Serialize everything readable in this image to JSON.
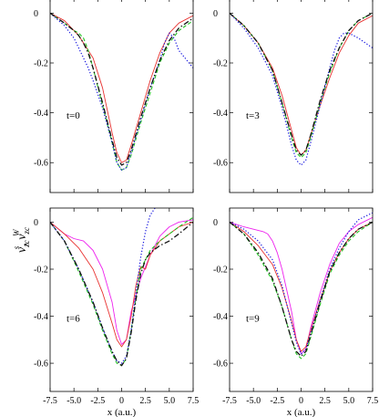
{
  "chart_data": {
    "type": "line",
    "shared_ylabel": {
      "base1": "v",
      "sup1": "s",
      "sub1": "zc",
      "sep": ", ",
      "base2": "v",
      "sup2": "W",
      "sub2": "zc"
    },
    "xlabel": "x (a.u.)",
    "xlim": [
      -7.5,
      7.5
    ],
    "ylim": [
      -0.72,
      0.06
    ],
    "xticks": [
      "-7.5",
      "-5.0",
      "-2.5",
      "0",
      "2.5",
      "5.0",
      "7.5"
    ],
    "yticks": [
      "0",
      "-0.2",
      "-0.4",
      "-0.6"
    ],
    "panels": [
      {
        "label": "t=0",
        "series": [
          {
            "color": "#e8312f",
            "style": "solid",
            "width": 0.9,
            "x": [
              -7.5,
              -6,
              -4.5,
              -3,
              -2,
              -1,
              -0.5,
              0,
              0.5,
              1,
              2,
              3,
              4,
              5,
              6,
              7.5
            ],
            "y": [
              0,
              -0.03,
              -0.09,
              -0.18,
              -0.3,
              -0.48,
              -0.56,
              -0.6,
              -0.59,
              -0.53,
              -0.4,
              -0.27,
              -0.16,
              -0.08,
              -0.04,
              -0.01
            ]
          },
          {
            "color": "#22c422",
            "style": "dash",
            "width": 1.1,
            "x": [
              -7.5,
              -6,
              -5,
              -4.5,
              -4,
              -3.5,
              -3,
              -2,
              -1,
              -0.5,
              0,
              0.5,
              1,
              2,
              3,
              4,
              5,
              6,
              7.5
            ],
            "y": [
              0,
              -0.04,
              -0.07,
              -0.08,
              -0.1,
              -0.15,
              -0.22,
              -0.37,
              -0.52,
              -0.6,
              -0.63,
              -0.62,
              -0.57,
              -0.44,
              -0.32,
              -0.2,
              -0.12,
              -0.07,
              -0.03
            ]
          },
          {
            "color": "#1a1ae0",
            "style": "dot",
            "width": 1.2,
            "x": [
              -7.5,
              -6,
              -5,
              -4.5,
              -4,
              -3.5,
              -3,
              -2,
              -1,
              -0.5,
              0,
              0.5,
              1,
              2,
              3,
              4,
              4.5,
              5,
              5.5,
              6,
              7.5
            ],
            "y": [
              0,
              -0.05,
              -0.1,
              -0.14,
              -0.18,
              -0.22,
              -0.27,
              -0.38,
              -0.52,
              -0.6,
              -0.63,
              -0.62,
              -0.56,
              -0.43,
              -0.3,
              -0.19,
              -0.12,
              -0.08,
              -0.1,
              -0.15,
              -0.22
            ]
          },
          {
            "color": "#111111",
            "style": "dashdot",
            "width": 1.3,
            "x": [
              -7.5,
              -6,
              -5,
              -4.5,
              -4,
              -3.5,
              -3,
              -2,
              -1,
              -0.5,
              0,
              0.5,
              1,
              2,
              3,
              4,
              5,
              6,
              7.5
            ],
            "y": [
              0,
              -0.04,
              -0.07,
              -0.09,
              -0.12,
              -0.16,
              -0.22,
              -0.36,
              -0.51,
              -0.58,
              -0.61,
              -0.6,
              -0.55,
              -0.42,
              -0.3,
              -0.19,
              -0.11,
              -0.06,
              -0.02
            ]
          }
        ]
      },
      {
        "label": "t=3",
        "series": [
          {
            "color": "#e8312f",
            "style": "solid",
            "width": 0.9,
            "x": [
              -7.5,
              -6,
              -4.5,
              -3,
              -2,
              -1,
              -0.5,
              0,
              0.5,
              1,
              2,
              3,
              4,
              5,
              6,
              7.5
            ],
            "y": [
              0,
              -0.05,
              -0.12,
              -0.22,
              -0.33,
              -0.47,
              -0.54,
              -0.57,
              -0.55,
              -0.49,
              -0.37,
              -0.26,
              -0.16,
              -0.09,
              -0.04,
              -0.01
            ]
          },
          {
            "color": "#22c422",
            "style": "dash",
            "width": 1.1,
            "x": [
              -7.5,
              -6,
              -4.5,
              -3,
              -2,
              -1,
              -0.5,
              0,
              0.5,
              1,
              2,
              3,
              4,
              5,
              6,
              7.5
            ],
            "y": [
              0,
              -0.05,
              -0.12,
              -0.23,
              -0.36,
              -0.5,
              -0.56,
              -0.58,
              -0.56,
              -0.5,
              -0.36,
              -0.24,
              -0.14,
              -0.07,
              -0.03,
              0
            ]
          },
          {
            "color": "#1a1ae0",
            "style": "dot",
            "width": 1.2,
            "x": [
              -7.5,
              -6,
              -4.5,
              -3,
              -2,
              -1,
              -0.5,
              0,
              0.5,
              1,
              2,
              3,
              3.5,
              4,
              4.5,
              5,
              6,
              7.5
            ],
            "y": [
              0,
              -0.06,
              -0.14,
              -0.25,
              -0.38,
              -0.53,
              -0.59,
              -0.61,
              -0.59,
              -0.52,
              -0.37,
              -0.22,
              -0.15,
              -0.1,
              -0.08,
              -0.08,
              -0.1,
              -0.14
            ]
          },
          {
            "color": "#111111",
            "style": "dashdot",
            "width": 1.3,
            "x": [
              -7.5,
              -6,
              -4.5,
              -3,
              -2,
              -1,
              -0.5,
              0,
              0.5,
              1,
              2,
              3,
              4,
              5,
              6,
              7.5
            ],
            "y": [
              0,
              -0.05,
              -0.12,
              -0.23,
              -0.36,
              -0.49,
              -0.55,
              -0.57,
              -0.55,
              -0.49,
              -0.35,
              -0.23,
              -0.14,
              -0.07,
              -0.03,
              0
            ]
          }
        ]
      },
      {
        "label": "t=6",
        "series": [
          {
            "color": "#ee22ee",
            "style": "solid",
            "width": 0.9,
            "x": [
              -7.5,
              -6,
              -5,
              -4,
              -3,
              -2,
              -1,
              -0.5,
              0,
              0.5,
              1,
              2,
              3,
              4,
              5,
              6,
              7.5
            ],
            "y": [
              0,
              -0.05,
              -0.07,
              -0.08,
              -0.12,
              -0.2,
              -0.34,
              -0.46,
              -0.52,
              -0.5,
              -0.38,
              -0.24,
              -0.14,
              -0.06,
              -0.02,
              0,
              0.01
            ]
          },
          {
            "color": "#e8312f",
            "style": "solid",
            "width": 0.9,
            "x": [
              -7.5,
              -6,
              -4.5,
              -3,
              -2,
              -1,
              -0.5,
              0,
              0.5,
              1,
              1.5,
              2,
              2.5,
              3,
              4,
              5,
              6,
              7.5
            ],
            "y": [
              0,
              -0.05,
              -0.11,
              -0.2,
              -0.3,
              -0.43,
              -0.5,
              -0.53,
              -0.5,
              -0.4,
              -0.27,
              -0.19,
              -0.2,
              -0.14,
              -0.08,
              -0.05,
              -0.02,
              0
            ]
          },
          {
            "color": "#22c422",
            "style": "dash",
            "width": 1.1,
            "x": [
              -7.5,
              -6,
              -4.5,
              -3,
              -2,
              -1,
              -0.5,
              0,
              0.5,
              1,
              1.5,
              2,
              3,
              4,
              5,
              6,
              7.5
            ],
            "y": [
              0,
              -0.08,
              -0.21,
              -0.35,
              -0.46,
              -0.56,
              -0.6,
              -0.61,
              -0.58,
              -0.46,
              -0.32,
              -0.2,
              -0.12,
              -0.08,
              -0.05,
              -0.02,
              0.02
            ]
          },
          {
            "color": "#1a1ae0",
            "style": "dot",
            "width": 1.2,
            "x": [
              -7.5,
              -6,
              -4.5,
              -3,
              -2,
              -1,
              -0.5,
              0,
              0.5,
              1,
              1.5,
              2,
              2.5,
              3,
              3.5,
              4,
              5,
              6,
              7.5
            ],
            "y": [
              0,
              -0.08,
              -0.2,
              -0.34,
              -0.45,
              -0.55,
              -0.59,
              -0.6,
              -0.57,
              -0.46,
              -0.3,
              -0.15,
              -0.04,
              0.03,
              0.06,
              0.07,
              0.08,
              0.09,
              0.1
            ]
          },
          {
            "color": "#111111",
            "style": "dashdot",
            "width": 1.3,
            "x": [
              -7.5,
              -6,
              -4.5,
              -3,
              -2,
              -1,
              -0.5,
              0,
              0.5,
              1,
              1.5,
              2,
              2.5,
              3,
              4,
              5,
              6,
              7.5
            ],
            "y": [
              0,
              -0.08,
              -0.2,
              -0.34,
              -0.45,
              -0.55,
              -0.59,
              -0.61,
              -0.58,
              -0.47,
              -0.33,
              -0.22,
              -0.16,
              -0.13,
              -0.1,
              -0.08,
              -0.05,
              0
            ]
          }
        ]
      },
      {
        "label": "t=9",
        "series": [
          {
            "color": "#ee22ee",
            "style": "solid",
            "width": 0.9,
            "x": [
              -7.5,
              -6,
              -5,
              -4,
              -3.5,
              -3,
              -2.5,
              -2,
              -1,
              -0.5,
              0,
              0.5,
              1,
              2,
              3,
              4,
              5,
              6,
              7.5
            ],
            "y": [
              0,
              -0.02,
              -0.03,
              -0.04,
              -0.05,
              -0.08,
              -0.13,
              -0.2,
              -0.38,
              -0.5,
              -0.56,
              -0.54,
              -0.45,
              -0.3,
              -0.18,
              -0.09,
              -0.04,
              -0.01,
              0.02
            ]
          },
          {
            "color": "#e8312f",
            "style": "solid",
            "width": 0.9,
            "x": [
              -7.5,
              -6,
              -4.5,
              -3,
              -2,
              -1,
              -0.5,
              0,
              0.5,
              1,
              2,
              3,
              4,
              5,
              6,
              7.5
            ],
            "y": [
              0,
              -0.04,
              -0.1,
              -0.18,
              -0.28,
              -0.42,
              -0.5,
              -0.55,
              -0.53,
              -0.46,
              -0.33,
              -0.21,
              -0.13,
              -0.07,
              -0.03,
              0
            ]
          },
          {
            "color": "#22c422",
            "style": "dash",
            "width": 1.1,
            "x": [
              -7.5,
              -6,
              -4.5,
              -3,
              -2,
              -1,
              -0.5,
              0,
              0.5,
              1,
              2,
              3,
              4,
              5,
              6,
              7.5
            ],
            "y": [
              0,
              -0.05,
              -0.14,
              -0.25,
              -0.36,
              -0.5,
              -0.56,
              -0.58,
              -0.56,
              -0.49,
              -0.35,
              -0.22,
              -0.14,
              -0.08,
              -0.04,
              0
            ]
          },
          {
            "color": "#1a1ae0",
            "style": "dot",
            "width": 1.2,
            "x": [
              -7.5,
              -6,
              -4.5,
              -3,
              -2,
              -1,
              -0.5,
              0,
              0.5,
              1,
              2,
              3,
              4,
              5,
              6,
              7.5
            ],
            "y": [
              0,
              -0.03,
              -0.08,
              -0.16,
              -0.27,
              -0.43,
              -0.51,
              -0.56,
              -0.54,
              -0.47,
              -0.33,
              -0.2,
              -0.11,
              -0.04,
              0.01,
              0.04
            ]
          },
          {
            "color": "#111111",
            "style": "dashdot",
            "width": 1.3,
            "x": [
              -7.5,
              -6,
              -4.5,
              -3,
              -2,
              -1,
              -0.5,
              0,
              0.5,
              1,
              2,
              3,
              4,
              5,
              6,
              7.5
            ],
            "y": [
              0,
              -0.05,
              -0.13,
              -0.24,
              -0.36,
              -0.5,
              -0.55,
              -0.57,
              -0.55,
              -0.48,
              -0.34,
              -0.21,
              -0.13,
              -0.07,
              -0.03,
              0
            ]
          }
        ]
      }
    ]
  }
}
